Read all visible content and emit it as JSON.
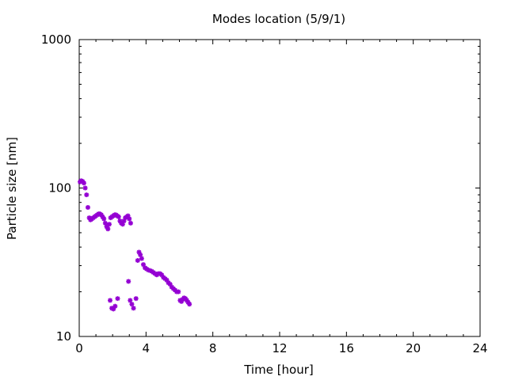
{
  "chart_data": {
    "type": "scatter",
    "title": "Modes location (5/9/1)",
    "xlabel": "Time [hour]",
    "ylabel": "Particle size [nm]",
    "xlim": [
      0,
      24
    ],
    "ylim": [
      10,
      1000
    ],
    "yscale": "log",
    "xticks": [
      "0",
      "4",
      "8",
      "12",
      "16",
      "20",
      "24"
    ],
    "yticks": [
      "10",
      "100",
      "1000"
    ],
    "grid": false,
    "marker_color": "#9400D3",
    "series": [
      {
        "x": [
          0.05,
          0.12,
          0.2,
          0.28,
          0.36,
          0.44,
          0.52,
          0.6,
          0.68,
          0.76,
          0.84,
          0.92,
          1.0,
          1.08,
          1.16,
          1.24,
          1.32,
          1.4,
          1.48,
          1.56,
          1.64,
          1.72,
          1.8,
          1.88,
          1.96,
          2.04,
          2.12,
          2.2,
          2.28,
          2.36,
          2.44,
          2.52,
          2.6,
          2.68,
          2.76,
          2.84,
          2.92,
          3.0,
          3.08,
          1.85,
          1.95,
          2.05,
          2.15,
          2.3,
          2.95,
          3.05,
          3.15,
          3.25,
          3.4,
          3.5,
          3.58,
          3.66,
          3.74,
          3.84,
          3.94,
          4.04,
          4.14,
          4.24,
          4.34,
          4.44,
          4.54,
          4.64,
          4.74,
          4.84,
          4.94,
          5.04,
          5.14,
          5.24,
          5.34,
          5.44,
          5.54,
          5.64,
          5.74,
          5.84,
          5.94,
          6.04,
          6.12,
          6.2,
          6.28,
          6.36,
          6.44,
          6.52,
          6.6
        ],
        "y": [
          110,
          112,
          111,
          108,
          100,
          90,
          74,
          63,
          61,
          62,
          63,
          64,
          65,
          66,
          67,
          67,
          66,
          64,
          62,
          58,
          55,
          53,
          57,
          63,
          64,
          65,
          66,
          66,
          65,
          64,
          60,
          58,
          57,
          60,
          63,
          64,
          65,
          62,
          58,
          17.5,
          15.5,
          15.3,
          16.0,
          18.0,
          23.5,
          17.5,
          16.5,
          15.5,
          18.0,
          32.5,
          37,
          35.5,
          33.5,
          30.5,
          29,
          28.5,
          28,
          27.8,
          27.5,
          27,
          26.5,
          26,
          26.5,
          26.5,
          26,
          25,
          24.5,
          24,
          23,
          22.5,
          21.5,
          21,
          20.5,
          20,
          20,
          17.5,
          17.2,
          17.8,
          18.2,
          18,
          17.5,
          17,
          16.5
        ]
      }
    ]
  }
}
